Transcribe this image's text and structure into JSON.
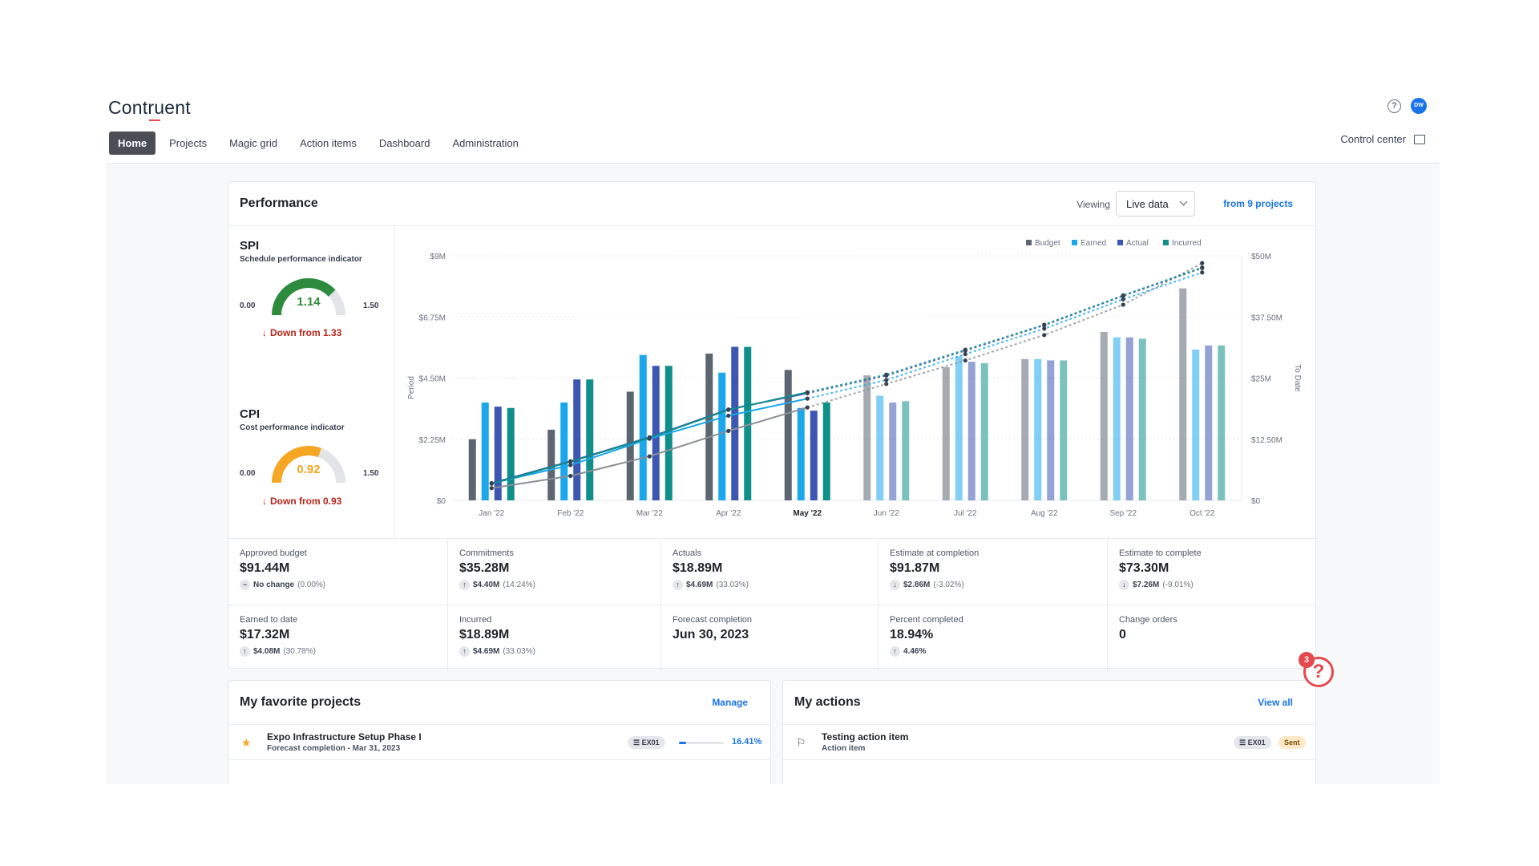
{
  "app": {
    "logo": "Contruent"
  },
  "nav": {
    "items": [
      "Home",
      "Projects",
      "Magic grid",
      "Action items",
      "Dashboard",
      "Administration"
    ],
    "active": "Home"
  },
  "header": {
    "control_center": "Control center",
    "avatar_initials": "DW"
  },
  "performance": {
    "title": "Performance",
    "viewing_label": "Viewing",
    "viewing_value": "Live data",
    "from_link": "from 9 projects",
    "spi": {
      "title": "SPI",
      "subtitle": "Schedule performance indicator",
      "value": "1.14",
      "min": "0.00",
      "max": "1.50",
      "change": "Down from 1.33",
      "value_num": 1.14,
      "max_num": 1.5,
      "color": "#2e8b3e"
    },
    "cpi": {
      "title": "CPI",
      "subtitle": "Cost performance indicator",
      "value": "0.92",
      "min": "0.00",
      "max": "1.50",
      "change": "Down from 0.93",
      "value_num": 0.92,
      "max_num": 1.5,
      "color": "#f5a623"
    }
  },
  "chart_data": {
    "type": "bar",
    "categories": [
      "Jan '22",
      "Feb '22",
      "Mar '22",
      "Apr '22",
      "May '22",
      "Jun '22",
      "Jul '22",
      "Aug '22",
      "Sep '22",
      "Oct '22"
    ],
    "current_category": "May '22",
    "legend": [
      "Budget",
      "Earned",
      "Actual",
      "Incurred"
    ],
    "legend_placement": "top-right",
    "left_axis": {
      "label": "Period",
      "ticks": [
        "$0",
        "$2.25M",
        "$4.50M",
        "$6.75M",
        "$9M"
      ],
      "max": 9
    },
    "right_axis": {
      "label": "To Date",
      "ticks": [
        "$0",
        "$12.50M",
        "$25M",
        "$37.50M",
        "$50M"
      ],
      "max": 50
    },
    "series": [
      {
        "name": "Budget",
        "color": "#5b6670",
        "values": [
          2.25,
          2.6,
          4.0,
          5.4,
          4.8,
          4.6,
          4.9,
          5.2,
          6.2,
          7.8
        ]
      },
      {
        "name": "Earned",
        "color": "#1aa7ec",
        "values": [
          3.6,
          3.6,
          5.35,
          4.7,
          3.4,
          3.85,
          5.3,
          5.2,
          6.0,
          5.55
        ]
      },
      {
        "name": "Actual",
        "color": "#3d55b3",
        "values": [
          3.45,
          4.45,
          4.95,
          5.65,
          3.3,
          3.6,
          5.1,
          5.15,
          6.0,
          5.7
        ]
      },
      {
        "name": "Incurred",
        "color": "#0f8f8a",
        "values": [
          3.4,
          4.45,
          4.95,
          5.65,
          3.6,
          3.65,
          5.05,
          5.15,
          5.95,
          5.7
        ]
      }
    ],
    "cumulative": [
      {
        "name": "Budget",
        "color": "#8a8f96",
        "values": [
          2.5,
          5.0,
          9.0,
          14.2,
          19.0,
          23.8,
          28.6,
          33.8,
          40.0,
          48.5
        ]
      },
      {
        "name": "Earned",
        "color": "#1aa7ec",
        "values": [
          3.5,
          7.2,
          12.6,
          17.3,
          20.8,
          24.6,
          29.9,
          35.1,
          41.1,
          46.6
        ]
      },
      {
        "name": "Actual",
        "color": "#3d55b3",
        "values": [
          3.5,
          8.0,
          12.9,
          18.6,
          21.9,
          25.5,
          30.6,
          35.8,
          41.8,
          47.5
        ]
      },
      {
        "name": "Incurred",
        "color": "#0f8f8a",
        "values": [
          3.4,
          7.9,
          12.8,
          18.5,
          22.1,
          25.7,
          30.8,
          35.9,
          41.9,
          47.6
        ]
      }
    ],
    "forecast_from": "May '22"
  },
  "metrics": {
    "row1": [
      {
        "label": "Approved budget",
        "value": "$91.44M",
        "icon": "minus",
        "change": "No change",
        "pct": "(0.00%)"
      },
      {
        "label": "Commitments",
        "value": "$35.28M",
        "icon": "up",
        "change": "$4.40M",
        "pct": "(14.24%)"
      },
      {
        "label": "Actuals",
        "value": "$18.89M",
        "icon": "up",
        "change": "$4.69M",
        "pct": "(33.03%)"
      },
      {
        "label": "Estimate at completion",
        "value": "$91.87M",
        "icon": "down",
        "change": "$2.86M",
        "pct": "(-3.02%)"
      },
      {
        "label": "Estimate to complete",
        "value": "$73.30M",
        "icon": "down",
        "change": "$7.26M",
        "pct": "(-9.01%)"
      }
    ],
    "row2": [
      {
        "label": "Earned to date",
        "value": "$17.32M",
        "icon": "up",
        "change": "$4.08M",
        "pct": "(30.78%)"
      },
      {
        "label": "Incurred",
        "value": "$18.89M",
        "icon": "up",
        "change": "$4.69M",
        "pct": "(33.03%)"
      },
      {
        "label": "Forecast completion",
        "value": "Jun 30, 2023",
        "icon": "",
        "change": "",
        "pct": ""
      },
      {
        "label": "Percent completed",
        "value": "18.94%",
        "icon": "up",
        "change": "4.46%",
        "pct": ""
      },
      {
        "label": "Change orders",
        "value": "0",
        "icon": "",
        "change": "",
        "pct": ""
      }
    ]
  },
  "favorites": {
    "title": "My favorite projects",
    "manage": "Manage",
    "rows": [
      {
        "name": "Expo Infrastructure Setup Phase I",
        "sub": "Forecast completion - Mar 31, 2023",
        "code": "EX01",
        "progress": "16.41%",
        "progress_num": 0.1641
      }
    ]
  },
  "actions": {
    "title": "My actions",
    "view_all": "View all",
    "rows": [
      {
        "name": "Testing action item",
        "sub": "Action item",
        "code": "EX01",
        "status": "Sent"
      }
    ]
  },
  "help": {
    "badge": "3"
  }
}
